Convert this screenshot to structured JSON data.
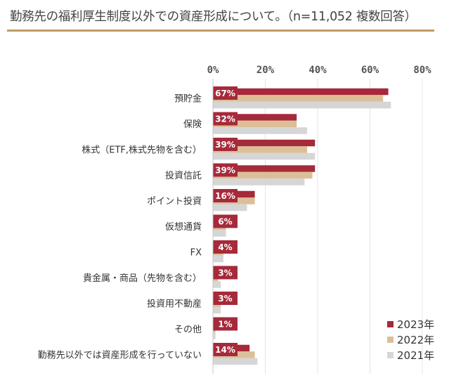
{
  "header": {
    "title": "勤務先の福利厚生制度以外での資産形成について。（n=11,052 複数回答）"
  },
  "chart_data": {
    "type": "bar",
    "orientation": "horizontal",
    "categories": [
      "預貯金",
      "保険",
      "株式（ETF,株式先物を含む）",
      "投資信託",
      "ポイント投資",
      "仮想通貨",
      "FX",
      "貴金属・商品（先物を含む）",
      "投資用不動産",
      "その他",
      "勤務先以外では資産形成を行っていない"
    ],
    "series": [
      {
        "name": "2023年",
        "color": "#a52a3a",
        "values": [
          67,
          32,
          39,
          39,
          16,
          6,
          4,
          3,
          3,
          1,
          14
        ]
      },
      {
        "name": "2022年",
        "color": "#dcbf98",
        "values": [
          65,
          32,
          36,
          38,
          16,
          5,
          4,
          2,
          3,
          1,
          16
        ]
      },
      {
        "name": "2021年",
        "color": "#d6d6d6",
        "values": [
          68,
          36,
          39,
          35,
          13,
          5,
          4,
          3,
          3,
          1,
          17
        ]
      }
    ],
    "labels": [
      "67%",
      "32%",
      "39%",
      "39%",
      "16%",
      "6%",
      "4%",
      "3%",
      "3%",
      "1%",
      "14%"
    ],
    "xticks": [
      "0%",
      "20%",
      "40%",
      "60%",
      "80%"
    ],
    "xlim": [
      0,
      80
    ],
    "grid": true,
    "legend_position": "bottom-right"
  }
}
